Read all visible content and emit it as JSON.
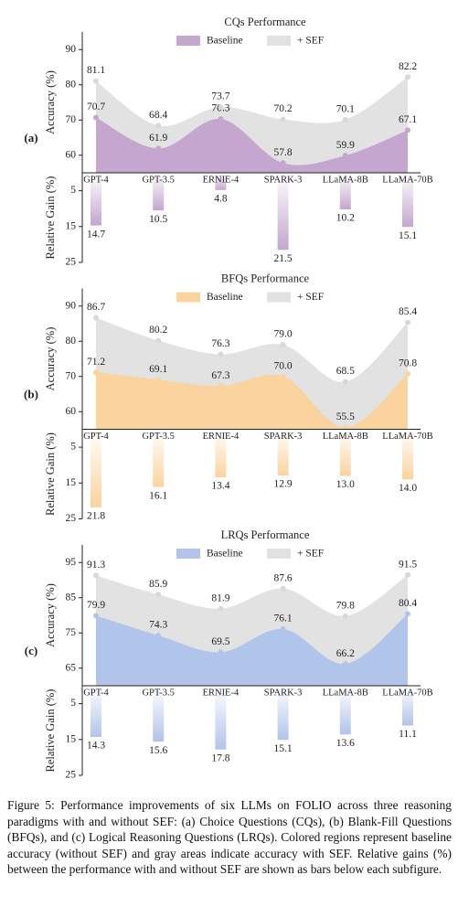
{
  "chart_data": [
    {
      "type": "area",
      "label": "(a)",
      "title": "CQs Performance",
      "ylabel": "Accuracy (%)",
      "categories": [
        "GPT-4",
        "GPT-3.5",
        "ERNIE-4",
        "SPARK-3",
        "LLaMA-8B",
        "LLaMA-70B"
      ],
      "series": [
        {
          "name": "Baseline",
          "color": "#c4a6cf",
          "values": [
            70.7,
            61.9,
            70.3,
            57.8,
            59.9,
            67.1
          ]
        },
        {
          "name": "+ SEF",
          "color": "#e2e2e2",
          "values": [
            81.1,
            68.4,
            73.7,
            70.2,
            70.1,
            82.2
          ]
        }
      ],
      "ylim": [
        55,
        95
      ],
      "yticks": [
        60,
        70,
        80,
        90
      ],
      "gain": {
        "ylabel": "Relative Gain (%)",
        "values": [
          14.7,
          10.5,
          4.8,
          21.5,
          10.2,
          15.1
        ],
        "ylim": [
          0,
          25
        ],
        "yticks": [
          5,
          15,
          25
        ]
      }
    },
    {
      "type": "area",
      "label": "(b)",
      "title": "BFQs Performance",
      "ylabel": "Accuracy (%)",
      "categories": [
        "GPT-4",
        "GPT-3.5",
        "ERNIE-4",
        "SPARK-3",
        "LLaMA-8B",
        "LLaMA-70B"
      ],
      "series": [
        {
          "name": "Baseline",
          "color": "#fbd39e",
          "values": [
            71.2,
            69.1,
            67.3,
            70,
            55.5,
            70.8
          ],
          "value_labels": [
            "71.2",
            "69.1",
            "67.3",
            "70.0",
            "55.5",
            "70.8"
          ]
        },
        {
          "name": "+ SEF",
          "color": "#e2e2e2",
          "values": [
            86.7,
            80.2,
            76.3,
            79,
            68.5,
            85.4
          ],
          "value_labels": [
            "86.7",
            "80.2",
            "76.3",
            "79.0",
            "68.5",
            "85.4"
          ]
        }
      ],
      "ylim": [
        55,
        95
      ],
      "yticks": [
        60,
        70,
        80,
        90
      ],
      "gain": {
        "ylabel": "Relative Gain (%)",
        "values": [
          21.8,
          16.1,
          13.4,
          12.9,
          13,
          14
        ],
        "value_labels": [
          "21.8",
          "16.1",
          "13.4",
          "12.9",
          "13.0",
          "14.0"
        ],
        "ylim": [
          0,
          25
        ],
        "yticks": [
          5,
          15,
          25
        ]
      }
    },
    {
      "type": "area",
      "label": "(c)",
      "title": "LRQs Performance",
      "ylabel": "Accuracy (%)",
      "categories": [
        "GPT-4",
        "GPT-3.5",
        "ERNIE-4",
        "SPARK-3",
        "LLaMA-8B",
        "LLaMA-70B"
      ],
      "series": [
        {
          "name": "Baseline",
          "color": "#b1c4ea",
          "values": [
            79.9,
            74.3,
            69.5,
            76.1,
            66.2,
            80.4
          ]
        },
        {
          "name": "+ SEF",
          "color": "#e2e2e2",
          "values": [
            91.3,
            85.9,
            81.9,
            87.6,
            79.8,
            91.5
          ]
        }
      ],
      "ylim": [
        60,
        100
      ],
      "yticks": [
        65,
        75,
        85,
        95
      ],
      "gain": {
        "ylabel": "Relative Gain (%)",
        "values": [
          14.3,
          15.6,
          17.8,
          15.1,
          13.6,
          11.1
        ],
        "ylim": [
          0,
          25
        ],
        "yticks": [
          5,
          15,
          25
        ]
      }
    }
  ],
  "caption": "Figure 5: Performance improvements of six LLMs on FOLIO across three reasoning paradigms with and without SEF: (a) Choice Questions (CQs), (b) Blank-Fill Questions (BFQs), and (c) Logical Reasoning Questions (LRQs). Colored regions represent baseline accuracy (without SEF) and gray areas indicate accuracy with SEF. Relative gains (%) between the performance with and without SEF are shown as bars below each subfigure."
}
